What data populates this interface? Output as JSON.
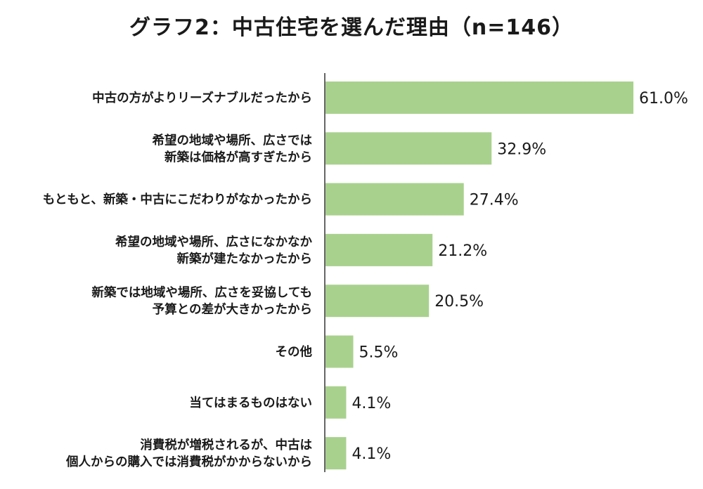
{
  "title": "グラフ2：中古住宅を選んだ理由（n=146）",
  "chart_data": {
    "type": "bar",
    "orientation": "horizontal",
    "title": "グラフ2：中古住宅を選んだ理由（n=146）",
    "categories": [
      [
        "中古の方がよりリーズナブルだったから"
      ],
      [
        "希望の地域や場所、広さでは",
        "新築は価格が高すぎたから"
      ],
      [
        "もともと、新築・中古にこだわりがなかったから"
      ],
      [
        "希望の地域や場所、広さになかなか",
        "新築が建たなかったから"
      ],
      [
        "新築では地域や場所、広さを妥協しても",
        "予算との差が大きかったから"
      ],
      [
        "その他"
      ],
      [
        "当てはまるものはない"
      ],
      [
        "消費税が増税されるが、中古は",
        "個人からの購入では消費税がかからないから"
      ]
    ],
    "values": [
      61.0,
      32.9,
      27.4,
      21.2,
      20.5,
      5.5,
      4.1,
      4.1
    ],
    "value_labels": [
      "61.0%",
      "32.9%",
      "27.4%",
      "21.2%",
      "20.5%",
      "5.5%",
      "4.1%",
      "4.1%"
    ],
    "unit": "%",
    "xlim": [
      0,
      70
    ],
    "grid": false,
    "bar_color": "#a9d18e",
    "axis_color": "#333333"
  }
}
